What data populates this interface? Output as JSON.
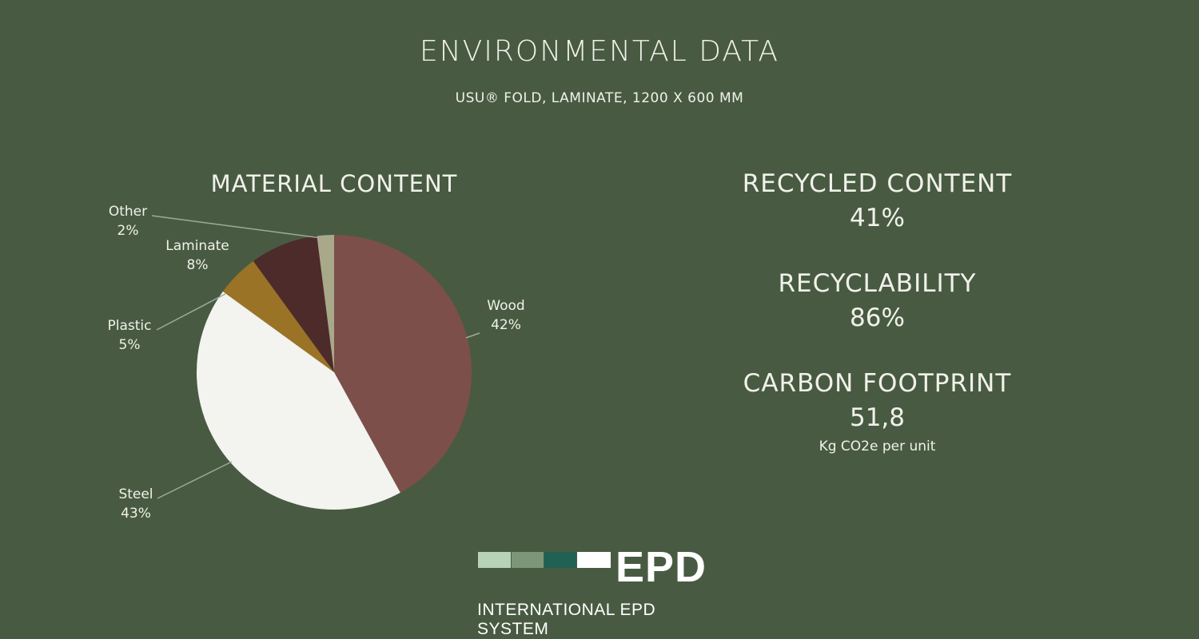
{
  "header": {
    "title": "ENVIRONMENTAL DATA",
    "subtitle": "USU® FOLD, LAMINATE, 1200 X 600 MM"
  },
  "chart_data": {
    "type": "pie",
    "title": "MATERIAL CONTENT",
    "slices": [
      {
        "label": "Wood",
        "value": 42,
        "display": "42%",
        "color": "#7d4f4a"
      },
      {
        "label": "Steel",
        "value": 43,
        "display": "43%",
        "color": "#f3f3ef"
      },
      {
        "label": "Plastic",
        "value": 5,
        "display": "5%",
        "color": "#9a7326"
      },
      {
        "label": "Laminate",
        "value": 8,
        "display": "8%",
        "color": "#4d2b2a"
      },
      {
        "label": "Other",
        "value": 2,
        "display": "2%",
        "color": "#a9a98a"
      }
    ],
    "legend": "none",
    "start_angle": "12 o'clock",
    "direction": "clockwise"
  },
  "stats": {
    "recycled": {
      "label": "RECYCLED CONTENT",
      "value": "41%"
    },
    "recyclability": {
      "label": "RECYCLABILITY",
      "value": "86%"
    },
    "carbon": {
      "label": "CARBON FOOTPRINT",
      "value": "51,8",
      "unit": "Kg CO2e per unit"
    }
  },
  "logo": {
    "text": "EPD",
    "subtitle": "INTERNATIONAL EPD SYSTEM",
    "bar_colors": [
      "#b7d3b7",
      "#7d967a",
      "#1f6152",
      "#ffffff"
    ]
  }
}
